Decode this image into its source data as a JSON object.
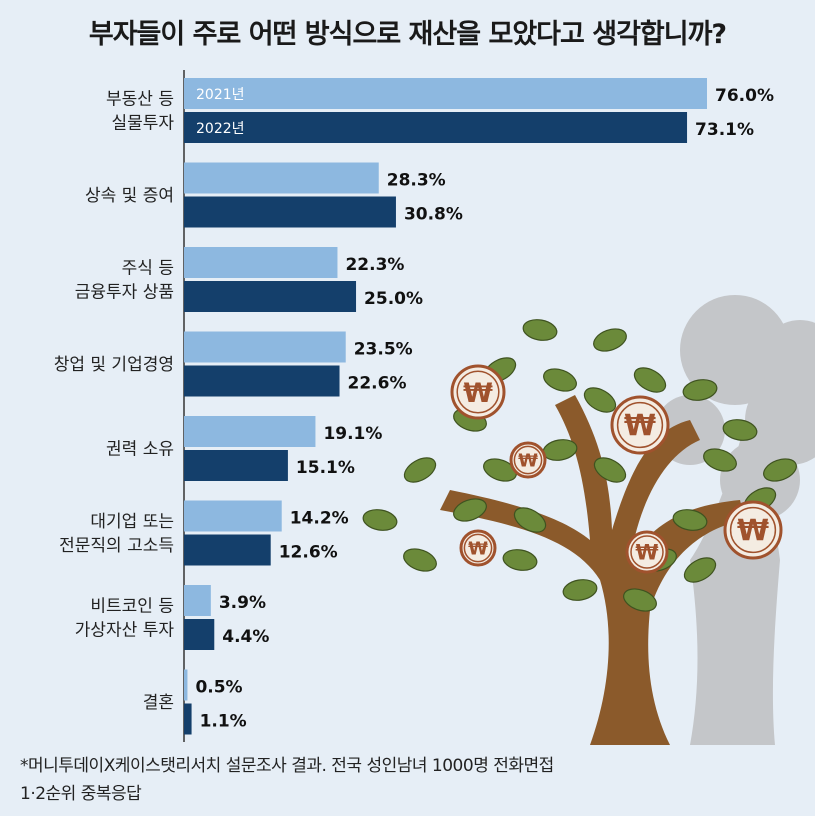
{
  "title": "부자들이 주로 어떤 방식으로 재산을 모았다고 생각합니까?",
  "footnote": {
    "line1": "*머니투데이X케이스탯리서치 설문조사 결과. 전국 성인남녀 1000명 전화면접",
    "line2": "1·2순위 중복응답"
  },
  "colors": {
    "series_2021": "#8db8e0",
    "series_2022": "#143f6b",
    "background": "#e6eef6",
    "trunk": "#8b5a2b",
    "leaf": "#6b8a3a",
    "coin": "#a0522d",
    "tree_shadow": "#c4c6c9"
  },
  "decorations": {
    "coin_symbol": "₩"
  },
  "chart_data": {
    "type": "bar",
    "orientation": "horizontal",
    "categories": [
      [
        "부동산 등",
        "실물투자"
      ],
      [
        "상속 및 증여"
      ],
      [
        "주식 등",
        "금융투자 상품"
      ],
      [
        "창업 및 기업경영"
      ],
      [
        "권력 소유"
      ],
      [
        "대기업 또는",
        "전문직의 고소득"
      ],
      [
        "비트코인 등",
        "가상자산 투자"
      ],
      [
        "결혼"
      ]
    ],
    "series": [
      {
        "name": "2021년",
        "values": [
          76.0,
          28.3,
          22.3,
          23.5,
          19.1,
          14.2,
          3.9,
          0.5
        ],
        "labels": [
          "76.0%",
          "28.3%",
          "22.3%",
          "23.5%",
          "19.1%",
          "14.2%",
          "3.9%",
          "0.5%"
        ]
      },
      {
        "name": "2022년",
        "values": [
          73.1,
          30.8,
          25.0,
          22.6,
          15.1,
          12.6,
          4.4,
          1.1
        ],
        "labels": [
          "73.1%",
          "30.8%",
          "25.0%",
          "22.6%",
          "15.1%",
          "12.6%",
          "4.4%",
          "1.1%"
        ]
      }
    ],
    "xlim": [
      0,
      76
    ],
    "grid": false,
    "legend": "inside-first-bars"
  }
}
